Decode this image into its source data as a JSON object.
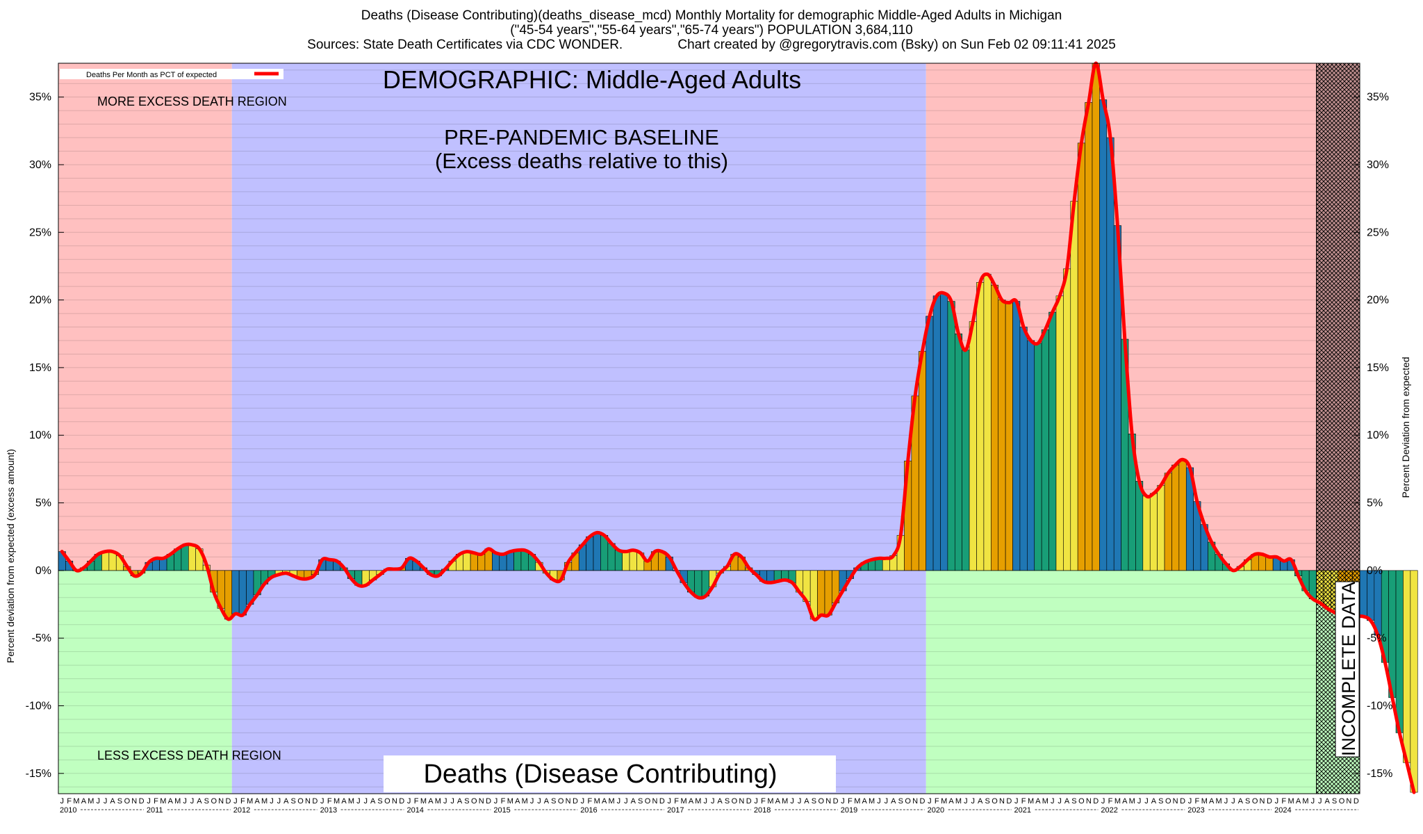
{
  "title": {
    "line1": "Deaths (Disease Contributing)(deaths_disease_mcd) Monthly Mortality for demographic Middle-Aged Adults in Michigan",
    "line2": "(\"45-54 years\",\"55-64 years\",\"65-74 years\") POPULATION 3,684,110",
    "line3_left": "Sources: State Death Certificates via CDC WONDER.",
    "line3_right": "Chart created by @gregorytravis.com (Bsky) on Sun Feb 02 09:11:41 2025"
  },
  "annotations": {
    "demographic": "DEMOGRAPHIC: Middle-Aged Adults",
    "baseline_line1": "PRE-PANDEMIC BASELINE",
    "baseline_line2": "(Excess deaths relative to this)",
    "more_region": "MORE EXCESS DEATH REGION",
    "less_region": "LESS EXCESS DEATH REGION",
    "incomplete": "INCOMPLETE DATA",
    "footer_label": "Deaths (Disease Contributing)"
  },
  "legend": {
    "label": "Deaths Per Month as PCT of expected",
    "line_color": "#ff0000"
  },
  "colors": {
    "more_region": "#ffc0c0",
    "less_region": "#c0ffc0",
    "baseline_region": "#c0c0ff",
    "incomplete_region": "#c09090",
    "trend_line": "#ff0000",
    "bar_palette": [
      "#1f77b4",
      "#189e77",
      "#f0e442",
      "#e69f00"
    ]
  },
  "chart_data": {
    "type": "bar",
    "xlabel": "",
    "ylabel_left": "Percent deviation from expected (excess amount)",
    "ylabel_right": "Percent Deviation from expected",
    "ylim": [
      -16.5,
      37.5
    ],
    "yticks": [
      -15,
      -10,
      -5,
      0,
      5,
      10,
      15,
      20,
      25,
      30,
      35
    ],
    "ytick_labels": [
      "-15%",
      "-10%",
      "-5%",
      "0%",
      "5%",
      "10%",
      "15%",
      "20%",
      "25%",
      "30%",
      "35%"
    ],
    "start": "2010-01",
    "month_letters": [
      "J",
      "F",
      "M",
      "A",
      "M",
      "J",
      "J",
      "A",
      "S",
      "O",
      "N",
      "D"
    ],
    "years": [
      "2010",
      "2011",
      "2012",
      "2013",
      "2014",
      "2015",
      "2016",
      "2017",
      "2018",
      "2019",
      "2020",
      "2021",
      "2022",
      "2023",
      "2024"
    ],
    "baseline_period": [
      "2012-01",
      "2019-12"
    ],
    "incomplete_period": [
      "2024-07",
      "2024-12"
    ],
    "series": [
      {
        "name": "Deaths Per Month as PCT of expected",
        "values": [
          1.4,
          0.7,
          0.0,
          0.2,
          0.7,
          1.2,
          1.4,
          1.4,
          1.1,
          0.3,
          -0.4,
          -0.2,
          0.6,
          0.9,
          0.9,
          1.2,
          1.6,
          1.9,
          1.9,
          1.6,
          0.4,
          -1.6,
          -2.8,
          -3.6,
          -3.2,
          -3.3,
          -2.5,
          -1.8,
          -1.0,
          -0.5,
          -0.3,
          -0.2,
          -0.4,
          -0.6,
          -0.6,
          -0.3,
          0.8,
          0.8,
          0.7,
          0.2,
          -0.6,
          -1.1,
          -1.1,
          -0.7,
          -0.3,
          0.1,
          0.1,
          0.2,
          0.9,
          0.7,
          0.2,
          -0.3,
          -0.4,
          0.1,
          0.7,
          1.2,
          1.4,
          1.3,
          1.2,
          1.6,
          1.3,
          1.2,
          1.4,
          1.5,
          1.5,
          1.2,
          0.6,
          -0.2,
          -0.7,
          -0.7,
          0.6,
          1.3,
          1.9,
          2.5,
          2.8,
          2.6,
          2.0,
          1.5,
          1.4,
          1.5,
          1.3,
          0.7,
          1.4,
          1.4,
          1.0,
          0.0,
          -0.9,
          -1.6,
          -2.0,
          -1.9,
          -1.2,
          -0.2,
          0.3,
          1.2,
          1.0,
          0.2,
          -0.3,
          -0.8,
          -0.9,
          -0.8,
          -0.7,
          -0.9,
          -1.6,
          -2.3,
          -3.6,
          -3.3,
          -3.3,
          -2.4,
          -1.5,
          -0.6,
          0.2,
          0.6,
          0.8,
          0.9,
          0.9,
          1.1,
          2.6,
          8.1,
          12.9,
          16.2,
          18.8,
          20.3,
          20.5,
          19.9,
          17.5,
          16.3,
          18.4,
          21.3,
          21.9,
          21.1,
          20.0,
          19.8,
          19.9,
          18.0,
          17.0,
          16.8,
          17.8,
          19.1,
          20.3,
          22.3,
          27.3,
          31.6,
          34.6,
          37.5,
          34.8,
          32.0,
          25.5,
          17.1,
          10.1,
          6.6,
          5.5,
          5.7,
          6.3,
          7.2,
          7.8,
          8.2,
          7.6,
          5.1,
          3.4,
          2.1,
          1.2,
          0.5,
          0.0,
          0.3,
          0.8,
          1.2,
          1.2,
          1.0,
          1.0,
          0.7,
          0.8,
          -0.4,
          -1.5,
          -2.1,
          -2.4,
          -2.8,
          -3.1,
          -3.4,
          -3.4,
          -3.4,
          -3.4,
          -3.7,
          -4.8,
          -6.8,
          -9.4,
          -12.0,
          -14.2,
          -16.4
        ]
      }
    ]
  }
}
